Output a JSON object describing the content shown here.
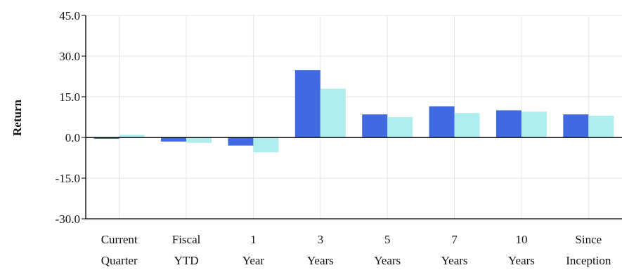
{
  "chart_data": {
    "type": "bar",
    "title": "",
    "xlabel": "",
    "ylabel": "Return",
    "ylim": [
      -30,
      45
    ],
    "yticks": [
      45,
      30,
      15,
      0,
      -15,
      -30
    ],
    "ytick_labels": [
      "45.0",
      "30.0",
      "15.0",
      "0.0",
      "-15.0",
      "-30.0"
    ],
    "categories": [
      [
        "Current",
        "Quarter"
      ],
      [
        "Fiscal",
        "YTD"
      ],
      [
        "1",
        "Year"
      ],
      [
        "3",
        "Years"
      ],
      [
        "5",
        "Years"
      ],
      [
        "7",
        "Years"
      ],
      [
        "10",
        "Years"
      ],
      [
        "Since",
        "Inception"
      ]
    ],
    "series": [
      {
        "color": "#4169E1",
        "values": [
          -0.5,
          -1.5,
          -3.0,
          24.8,
          8.5,
          11.5,
          10.0,
          8.5
        ]
      },
      {
        "color": "#AFEEEE",
        "values": [
          1.0,
          -2.0,
          -5.5,
          18.0,
          7.5,
          9.0,
          9.5,
          8.0
        ]
      }
    ],
    "grid": true,
    "legend": "none"
  }
}
